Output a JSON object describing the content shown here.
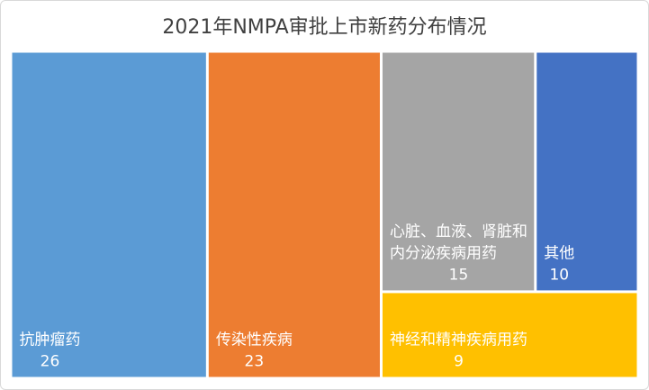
{
  "chart_data": {
    "type": "treemap",
    "title": "2021年NMPA审批上市新药分布情况",
    "items": [
      {
        "label": "抗肿瘤药",
        "value": 26,
        "color": "#5b9bd5",
        "text_color": "#ffffff"
      },
      {
        "label": "传染性疾病",
        "value": 23,
        "color": "#ed7d31",
        "text_color": "#ffffff"
      },
      {
        "label": "心脏、血液、肾脏和内分泌疾病用药",
        "value": 15,
        "color": "#a5a5a5",
        "text_color": "#ffffff"
      },
      {
        "label": "其他",
        "value": 10,
        "color": "#4472c4",
        "text_color": "#ffffff"
      },
      {
        "label": "神经和精神疾病用药",
        "value": 9,
        "color": "#ffc000",
        "text_color": "#ffffff"
      }
    ]
  }
}
